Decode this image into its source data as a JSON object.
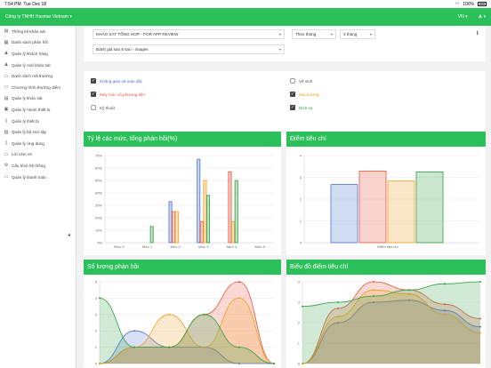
{
  "statusbar": {
    "time": "7:54 PM",
    "date": "Tue Dec 18",
    "battery_pct": "100%",
    "wifi": "wifi-icon"
  },
  "topnav": {
    "company": "Công ty TNHH Hasmar Vietnam",
    "language": "VN"
  },
  "sidebar": {
    "items": [
      {
        "label": "Thống kê khảo sát",
        "icon": "chart-icon"
      },
      {
        "label": "Danh sách phản hồi",
        "icon": "list-icon"
      },
      {
        "label": "Quản lý khách hàng",
        "icon": "users-icon"
      },
      {
        "label": "Quản lý mời khảo sát",
        "icon": "invite-icon"
      },
      {
        "label": "Danh sách mã thưởng",
        "icon": "ticket-icon"
      },
      {
        "label": "Chương trình thưởng điểm",
        "icon": "gift-icon"
      },
      {
        "label": "Quản lý khảo sát",
        "icon": "survey-icon"
      },
      {
        "label": "Quản lý nhóm thiết bị",
        "icon": "device-group-icon"
      },
      {
        "label": "Quản lý thiết bị",
        "icon": "device-icon"
      },
      {
        "label": "Quản lý bộ sưu tập",
        "icon": "image-icon"
      },
      {
        "label": "Quản lý ứng dụng",
        "icon": "app-icon"
      },
      {
        "label": "Lời cảm ơn",
        "icon": "message-icon"
      },
      {
        "label": "Cấu hình hệ thống",
        "icon": "gear-icon"
      },
      {
        "label": "Quản lý thanh toán",
        "icon": "payment-icon"
      }
    ]
  },
  "filters": {
    "survey": "KHẢO SÁT TỔNG HỢP - FOR APP REVIEW",
    "period_type": "Theo tháng",
    "period_value": "3 tháng",
    "rating": "Đánh giá sao 5 sao - images"
  },
  "criteria": [
    {
      "label": "Không gian và màu sắc",
      "checked": true,
      "color": "#3b6fd6"
    },
    {
      "label": "Vệ sinh",
      "checked": false,
      "color": "#555555"
    },
    {
      "label": "Máy móc và phương tiện",
      "checked": true,
      "color": "#e8533a"
    },
    {
      "label": "Mùi hương",
      "checked": true,
      "color": "#f0a020"
    },
    {
      "label": "Kỹ thuật",
      "checked": false,
      "color": "#555555"
    },
    {
      "label": "Dịch vụ",
      "checked": true,
      "color": "#2e9e3e"
    }
  ],
  "colors": {
    "blue": "#4a74d8",
    "red": "#e8533a",
    "orange": "#f0a020",
    "green": "#2e9e3e",
    "accent": "#2cc05a"
  },
  "charts": {
    "ratio_title": "Tỷ lệ các mức, tổng phản hồi(%)",
    "score_title": "Điểm tiêu chí",
    "count_title": "Số lượng phản hồi",
    "score_chart_title": "Biểu đồ điểm tiêu chí"
  },
  "chart_data": [
    {
      "type": "bar",
      "title": "Tỷ lệ các mức, tổng phản hồi(%)",
      "categories": [
        "Mức 0",
        "Mức 1",
        "Mức 2",
        "Mức 3",
        "Mức 4",
        "Mức 5"
      ],
      "yticks": [
        "0%",
        "10%",
        "20%",
        "30%",
        "40%",
        "50%",
        "60%",
        "70%"
      ],
      "ylim": [
        0,
        70
      ],
      "series": [
        {
          "color": "#4a74d8",
          "values": [
            0,
            0,
            33,
            67,
            0,
            0
          ]
        },
        {
          "color": "#e8533a",
          "values": [
            0,
            0,
            25,
            17,
            57,
            0
          ]
        },
        {
          "color": "#f0a020",
          "values": [
            0,
            0,
            25,
            50,
            17,
            0
          ]
        },
        {
          "color": "#2e9e3e",
          "values": [
            0,
            13,
            0,
            38,
            50,
            0
          ]
        }
      ]
    },
    {
      "type": "bar",
      "title": "Điểm tiêu chí",
      "categories": [
        "Điểm tiêu chí"
      ],
      "yticks": [
        "0",
        "1",
        "2",
        "3",
        "4"
      ],
      "ylim": [
        0,
        4
      ],
      "series": [
        {
          "color": "#4a74d8",
          "values": [
            2.67
          ]
        },
        {
          "color": "#e8533a",
          "values": [
            3.29
          ]
        },
        {
          "color": "#f0a020",
          "values": [
            2.83
          ]
        },
        {
          "color": "#2e9e3e",
          "values": [
            3.25
          ]
        }
      ]
    },
    {
      "type": "area",
      "title": "Số lượng phản hồi",
      "yticks": [
        "0",
        "1",
        "2",
        "3",
        "4",
        "5"
      ],
      "ylim": [
        0,
        5
      ],
      "x": [
        0,
        1,
        2,
        3,
        4,
        5
      ],
      "series": [
        {
          "color": "#4a74d8",
          "values": [
            0,
            2,
            1,
            1,
            0,
            0
          ]
        },
        {
          "color": "#e8533a",
          "values": [
            0,
            1,
            1,
            3,
            5,
            0
          ]
        },
        {
          "color": "#f0a020",
          "values": [
            0,
            1,
            3,
            1,
            4,
            0
          ]
        },
        {
          "color": "#2e9e3e",
          "values": [
            4,
            1,
            1,
            3,
            1,
            0
          ]
        }
      ],
      "note": "values approximate"
    },
    {
      "type": "area",
      "title": "Biểu đồ điểm tiêu chí",
      "yticks": [
        "0",
        "1",
        "2",
        "3",
        "4"
      ],
      "ylim": [
        0,
        4
      ],
      "x": [
        0,
        1,
        2,
        3,
        4,
        5
      ],
      "series": [
        {
          "color": "#4a74d8",
          "values": [
            0,
            2,
            3,
            3.1,
            2.6,
            1.8
          ]
        },
        {
          "color": "#e8533a",
          "values": [
            0,
            2.7,
            4,
            3.6,
            2.9,
            2.2
          ]
        },
        {
          "color": "#f0a020",
          "values": [
            0,
            2.3,
            3.6,
            3.4,
            2.4,
            1.5
          ]
        },
        {
          "color": "#2e9e3e",
          "values": [
            2.8,
            3.0,
            3.3,
            3.6,
            3.9,
            4.0
          ]
        }
      ],
      "note": "values approximate"
    }
  ]
}
